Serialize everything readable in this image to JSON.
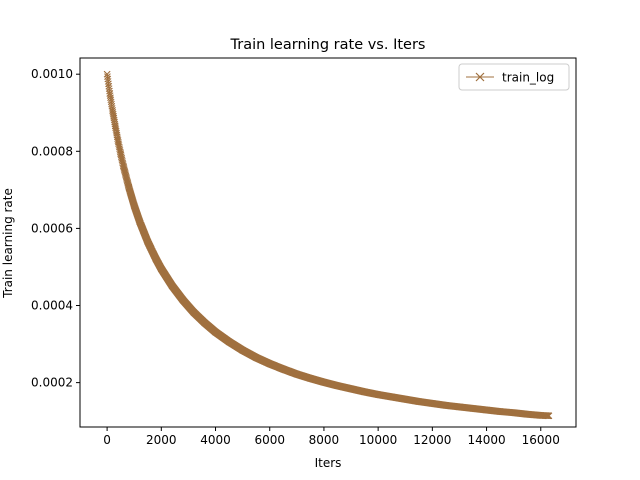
{
  "chart_data": {
    "type": "line",
    "title": "Train learning rate  vs. Iters",
    "xlabel": "Iters",
    "ylabel": "Train learning rate",
    "xlim": [
      -1000,
      17300
    ],
    "ylim": [
      8.49e-05,
      0.001042
    ],
    "xticks": [
      0,
      2000,
      4000,
      6000,
      8000,
      10000,
      12000,
      14000,
      16000
    ],
    "xtick_labels": [
      "0",
      "2000",
      "4000",
      "6000",
      "8000",
      "10000",
      "12000",
      "14000",
      "16000"
    ],
    "yticks": [
      0.0002,
      0.0004,
      0.0006,
      0.0008,
      0.001
    ],
    "ytick_labels": [
      "0.0002",
      "0.0004",
      "0.0006",
      "0.0008",
      "0.0010"
    ],
    "grid": false,
    "legend_position": "top-right",
    "series": [
      {
        "name": "train_log",
        "color": "#a0703f",
        "marker": "x",
        "x": [
          0,
          100,
          200,
          300,
          400,
          500,
          600,
          800,
          1000,
          1200,
          1500,
          1800,
          2000,
          2400,
          2800,
          3200,
          3600,
          4000,
          4500,
          5000,
          5500,
          6000,
          6500,
          7000,
          7500,
          8000,
          8500,
          9000,
          9500,
          10000,
          10500,
          11000,
          11500,
          12000,
          12500,
          13000,
          13500,
          14000,
          14500,
          15000,
          15500,
          16000,
          16300
        ],
        "y": [
          0.001,
          0.00095,
          0.000906,
          0.000866,
          0.000828,
          0.000794,
          0.000762,
          0.000707,
          0.000659,
          0.000618,
          0.000565,
          0.000521,
          0.000495,
          0.000451,
          0.000414,
          0.000382,
          0.000355,
          0.000331,
          0.000306,
          0.000284,
          0.000265,
          0.000249,
          0.000235,
          0.000222,
          0.000211,
          0.000201,
          0.000192,
          0.000184,
          0.000176,
          0.000169,
          0.000163,
          0.000157,
          0.000151,
          0.000146,
          0.000141,
          0.000137,
          0.000133,
          0.000129,
          0.000125,
          0.000122,
          0.000118,
          0.000115,
          0.000114
        ]
      }
    ]
  }
}
